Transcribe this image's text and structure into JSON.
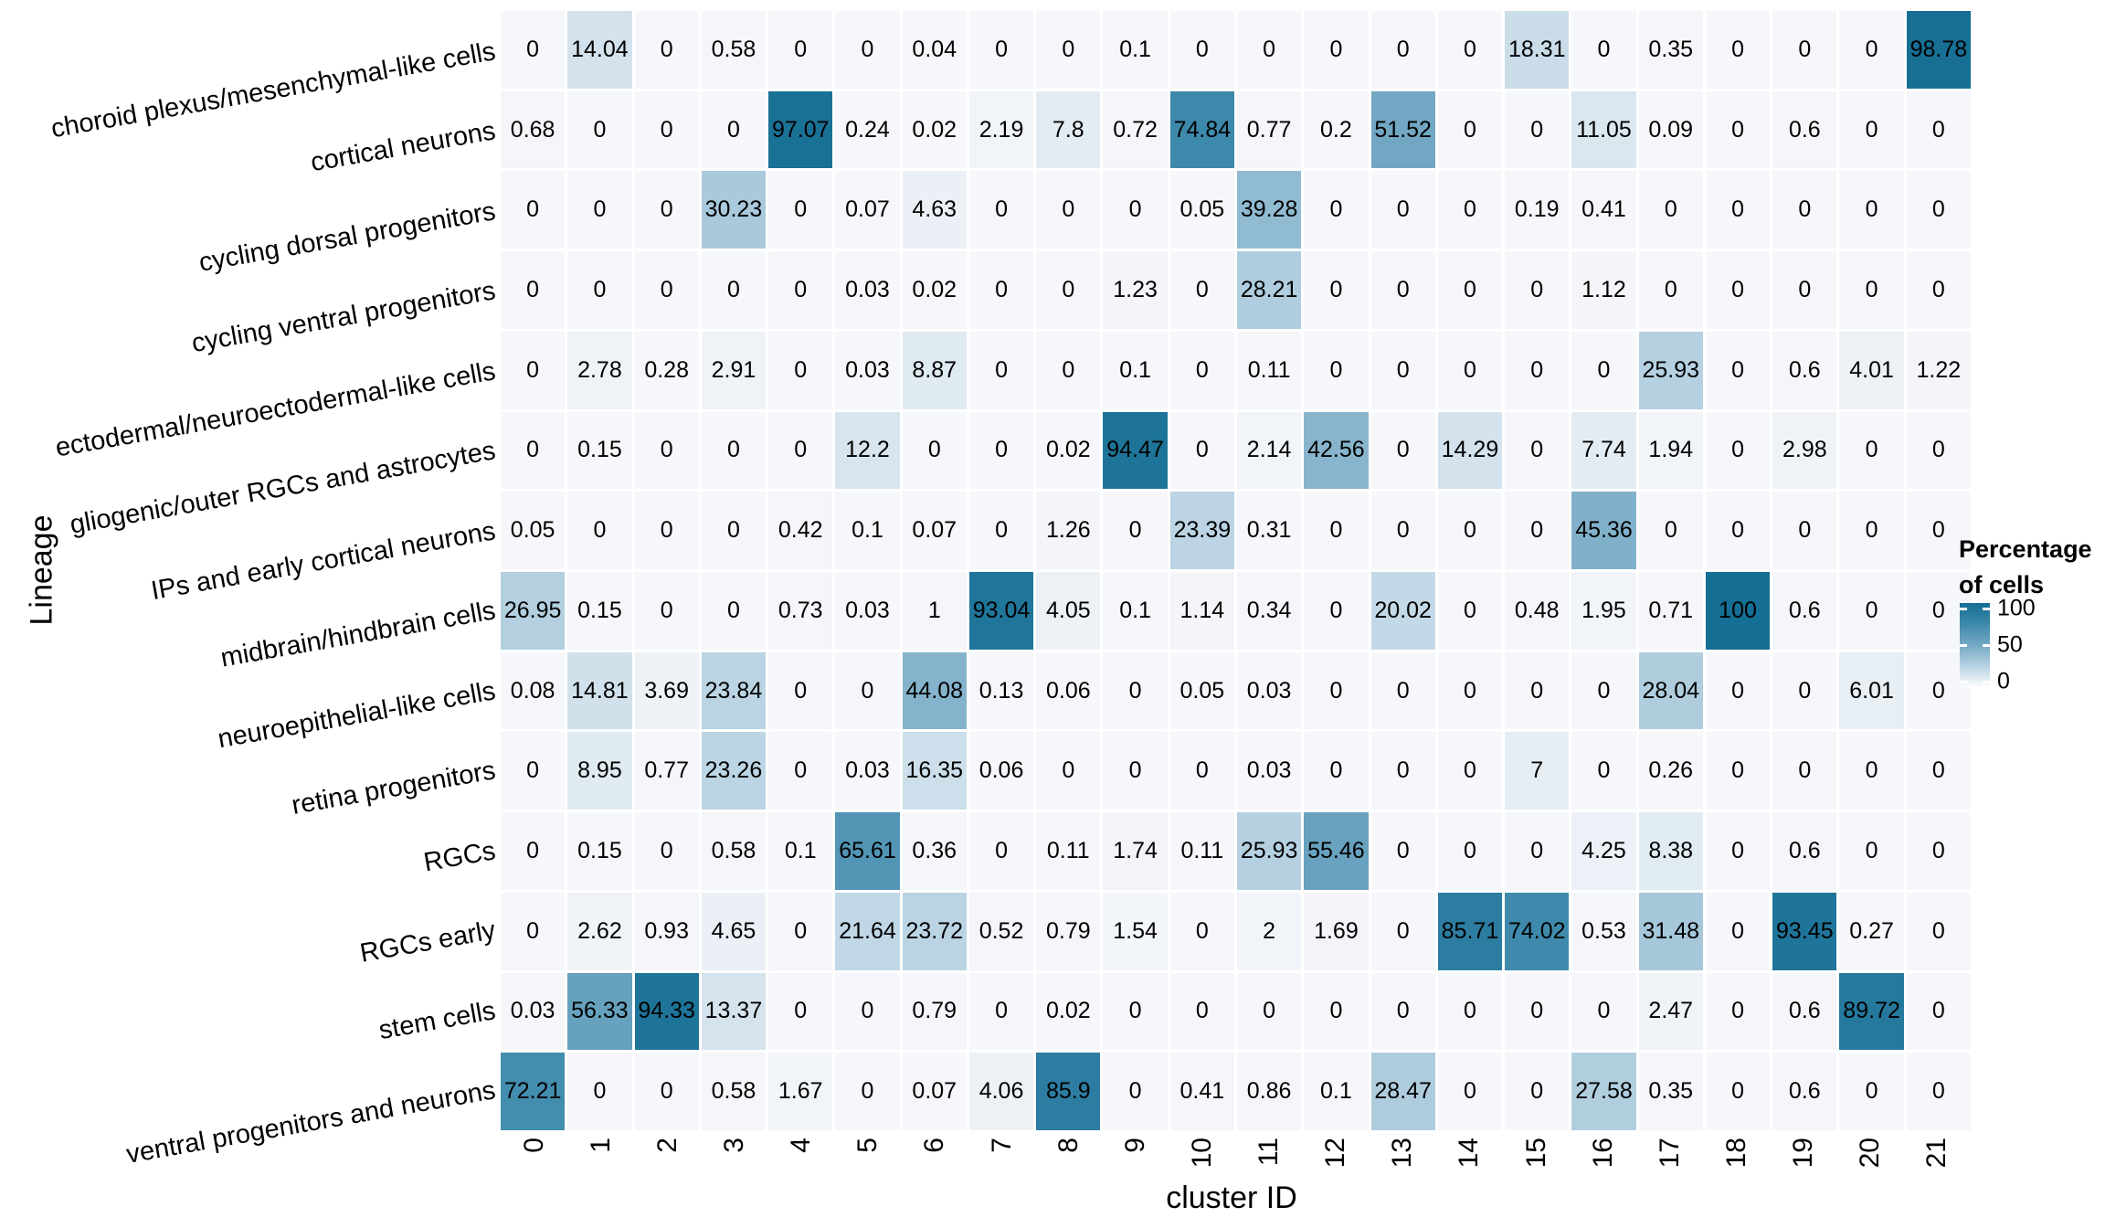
{
  "figure": {
    "x_axis_title": "cluster ID",
    "y_axis_title": "Lineage"
  },
  "legend": {
    "title_lines": [
      "Percentage",
      "of cells"
    ],
    "ticks": [
      "100",
      "50",
      "0"
    ]
  },
  "chart_data": {
    "type": "heatmap",
    "title": "",
    "xlabel": "cluster ID",
    "ylabel": "Lineage",
    "legend_title": "Percentage of cells",
    "legend_tick_values": [
      100,
      50,
      0
    ],
    "value_range": [
      0,
      100
    ],
    "colorscale": {
      "low_color": "#f6f7fa",
      "mid_color": "#74a9c4",
      "high_color": "#156e93",
      "anchors": [
        [
          0,
          "#f6f7fa"
        ],
        [
          25,
          "#b8d2e2"
        ],
        [
          50,
          "#74a9c4"
        ],
        [
          75,
          "#3d89ab"
        ],
        [
          100,
          "#156e93"
        ]
      ]
    },
    "columns": [
      "0",
      "1",
      "2",
      "3",
      "4",
      "5",
      "6",
      "7",
      "8",
      "9",
      "10",
      "11",
      "12",
      "13",
      "14",
      "15",
      "16",
      "17",
      "18",
      "19",
      "20",
      "21"
    ],
    "rows": [
      {
        "lineage": "choroid plexus/mesenchymal-like cells",
        "values": [
          "0",
          "14.04",
          "0",
          "0.58",
          "0",
          "0",
          "0.04",
          "0",
          "0",
          "0.1",
          "0",
          "0",
          "0",
          "0",
          "0",
          "18.31",
          "0",
          "0.35",
          "0",
          "0",
          "0",
          "98.78"
        ]
      },
      {
        "lineage": "cortical neurons",
        "values": [
          "0.68",
          "0",
          "0",
          "0",
          "97.07",
          "0.24",
          "0.02",
          "2.19",
          "7.8",
          "0.72",
          "74.84",
          "0.77",
          "0.2",
          "51.52",
          "0",
          "0",
          "11.05",
          "0.09",
          "0",
          "0.6",
          "0",
          "0"
        ]
      },
      {
        "lineage": "cycling dorsal progenitors",
        "values": [
          "0",
          "0",
          "0",
          "30.23",
          "0",
          "0.07",
          "4.63",
          "0",
          "0",
          "0",
          "0.05",
          "39.28",
          "0",
          "0",
          "0",
          "0.19",
          "0.41",
          "0",
          "0",
          "0",
          "0",
          "0"
        ]
      },
      {
        "lineage": "cycling ventral progenitors",
        "values": [
          "0",
          "0",
          "0",
          "0",
          "0",
          "0.03",
          "0.02",
          "0",
          "0",
          "1.23",
          "0",
          "28.21",
          "0",
          "0",
          "0",
          "0",
          "1.12",
          "0",
          "0",
          "0",
          "0",
          "0"
        ]
      },
      {
        "lineage": "ectodermal/neuroectodermal-like cells",
        "values": [
          "0",
          "2.78",
          "0.28",
          "2.91",
          "0",
          "0.03",
          "8.87",
          "0",
          "0",
          "0.1",
          "0",
          "0.11",
          "0",
          "0",
          "0",
          "0",
          "0",
          "25.93",
          "0",
          "0.6",
          "4.01",
          "1.22"
        ]
      },
      {
        "lineage": "gliogenic/outer RGCs and astrocytes",
        "values": [
          "0",
          "0.15",
          "0",
          "0",
          "0",
          "12.2",
          "0",
          "0",
          "0.02",
          "94.47",
          "0",
          "2.14",
          "42.56",
          "0",
          "14.29",
          "0",
          "7.74",
          "1.94",
          "0",
          "2.98",
          "0",
          "0"
        ]
      },
      {
        "lineage": "IPs and early cortical neurons",
        "values": [
          "0.05",
          "0",
          "0",
          "0",
          "0.42",
          "0.1",
          "0.07",
          "0",
          "1.26",
          "0",
          "23.39",
          "0.31",
          "0",
          "0",
          "0",
          "0",
          "45.36",
          "0",
          "0",
          "0",
          "0",
          "0"
        ]
      },
      {
        "lineage": "midbrain/hindbrain cells",
        "values": [
          "26.95",
          "0.15",
          "0",
          "0",
          "0.73",
          "0.03",
          "1",
          "93.04",
          "4.05",
          "0.1",
          "1.14",
          "0.34",
          "0",
          "20.02",
          "0",
          "0.48",
          "1.95",
          "0.71",
          "100",
          "0.6",
          "0",
          "0"
        ]
      },
      {
        "lineage": "neuroepithelial-like cells",
        "values": [
          "0.08",
          "14.81",
          "3.69",
          "23.84",
          "0",
          "0",
          "44.08",
          "0.13",
          "0.06",
          "0",
          "0.05",
          "0.03",
          "0",
          "0",
          "0",
          "0",
          "0",
          "28.04",
          "0",
          "0",
          "6.01",
          "0"
        ]
      },
      {
        "lineage": "retina progenitors",
        "values": [
          "0",
          "8.95",
          "0.77",
          "23.26",
          "0",
          "0.03",
          "16.35",
          "0.06",
          "0",
          "0",
          "0",
          "0.03",
          "0",
          "0",
          "0",
          "7",
          "0",
          "0.26",
          "0",
          "0",
          "0",
          "0"
        ]
      },
      {
        "lineage": "RGCs",
        "values": [
          "0",
          "0.15",
          "0",
          "0.58",
          "0.1",
          "65.61",
          "0.36",
          "0",
          "0.11",
          "1.74",
          "0.11",
          "25.93",
          "55.46",
          "0",
          "0",
          "0",
          "4.25",
          "8.38",
          "0",
          "0.6",
          "0",
          "0"
        ]
      },
      {
        "lineage": "RGCs early",
        "values": [
          "0",
          "2.62",
          "0.93",
          "4.65",
          "0",
          "21.64",
          "23.72",
          "0.52",
          "0.79",
          "1.54",
          "0",
          "2",
          "1.69",
          "0",
          "85.71",
          "74.02",
          "0.53",
          "31.48",
          "0",
          "93.45",
          "0.27",
          "0"
        ]
      },
      {
        "lineage": "stem cells",
        "values": [
          "0.03",
          "56.33",
          "94.33",
          "13.37",
          "0",
          "0",
          "0.79",
          "0",
          "0.02",
          "0",
          "0",
          "0",
          "0",
          "0",
          "0",
          "0",
          "0",
          "2.47",
          "0",
          "0.6",
          "89.72",
          "0"
        ]
      },
      {
        "lineage": "ventral progenitors and neurons",
        "values": [
          "72.21",
          "0",
          "0",
          "0.58",
          "1.67",
          "0",
          "0.07",
          "4.06",
          "85.9",
          "0",
          "0.41",
          "0.86",
          "0.1",
          "28.47",
          "0",
          "0",
          "27.58",
          "0.35",
          "0",
          "0.6",
          "0",
          "0"
        ]
      }
    ]
  }
}
